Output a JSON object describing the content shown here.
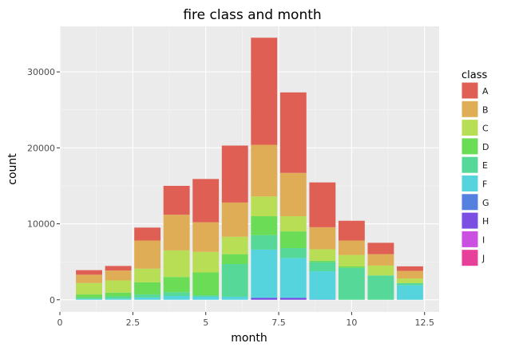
{
  "chart_data": {
    "type": "bar",
    "stacked": true,
    "title": "fire class and month",
    "xlabel": "month",
    "ylabel": "count",
    "xlim": [
      0,
      13
    ],
    "ylim": [
      -1600,
      36000
    ],
    "x_ticks": [
      0,
      2.5,
      5,
      7.5,
      10,
      12.5
    ],
    "x_tick_labels": [
      "0",
      "2.5",
      "5",
      "7.5",
      "10",
      "12.5"
    ],
    "y_ticks": [
      0,
      10000,
      20000,
      30000
    ],
    "y_tick_labels": [
      "0",
      "10000",
      "20000",
      "30000"
    ],
    "bar_width": 0.9,
    "grid": true,
    "legend": {
      "title": "class",
      "position": "right"
    },
    "categories": [
      1,
      2,
      3,
      4,
      5,
      6,
      7,
      8,
      9,
      10,
      11,
      12
    ],
    "series": [
      {
        "name": "J",
        "color": "#e7409a",
        "values": [
          0,
          0,
          0,
          0,
          0,
          0,
          0,
          0,
          0,
          0,
          0,
          0
        ]
      },
      {
        "name": "I",
        "color": "#cb4fe0",
        "values": [
          0,
          0,
          0,
          0,
          0,
          0,
          0,
          0,
          0,
          0,
          0,
          0
        ]
      },
      {
        "name": "H",
        "color": "#7a4fe2",
        "values": [
          0,
          0,
          0,
          0,
          0,
          0,
          200,
          200,
          0,
          0,
          0,
          0
        ]
      },
      {
        "name": "G",
        "color": "#5480e0",
        "values": [
          0,
          0,
          0,
          0,
          0,
          0,
          100,
          100,
          50,
          0,
          0,
          0
        ]
      },
      {
        "name": "F",
        "color": "#56d4dd",
        "values": [
          100,
          150,
          300,
          500,
          400,
          400,
          6300,
          5200,
          3700,
          0,
          0,
          1900
        ]
      },
      {
        "name": "E",
        "color": "#56d898",
        "values": [
          200,
          300,
          400,
          500,
          200,
          4300,
          1900,
          1300,
          1200,
          4200,
          3200,
          300
        ]
      },
      {
        "name": "D",
        "color": "#6adc55",
        "values": [
          400,
          500,
          1600,
          2000,
          3000,
          1300,
          2500,
          2200,
          200,
          200,
          0,
          0
        ]
      },
      {
        "name": "C",
        "color": "#b8de55",
        "values": [
          1500,
          1600,
          1800,
          3500,
          2700,
          2300,
          2600,
          2000,
          1500,
          1500,
          1300,
          600
        ]
      },
      {
        "name": "B",
        "color": "#dfad55",
        "values": [
          1100,
          1300,
          3700,
          4700,
          3900,
          4500,
          6800,
          5700,
          2900,
          1900,
          1500,
          1000
        ]
      },
      {
        "name": "A",
        "color": "#df5f54",
        "values": [
          600,
          600,
          1700,
          3800,
          5700,
          7500,
          14100,
          10600,
          5900,
          2600,
          1500,
          600
        ]
      }
    ]
  }
}
